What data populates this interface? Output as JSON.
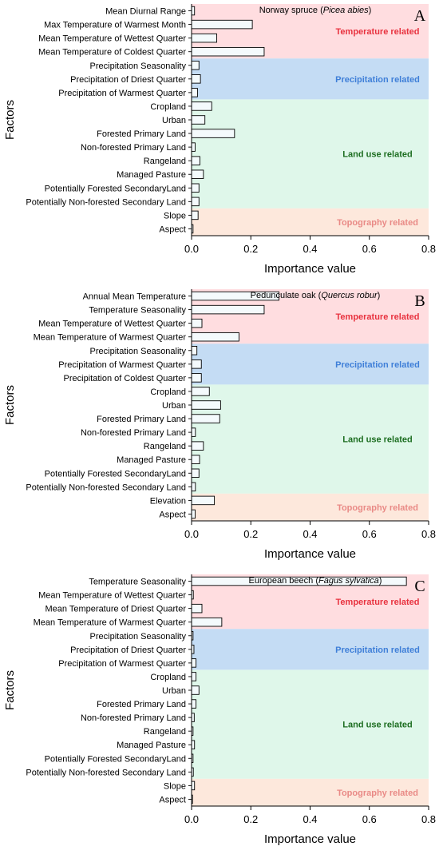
{
  "colors": {
    "temperature": "#ffdde0",
    "precipitation": "#c4dcf4",
    "landuse": "#dff7ea",
    "topography": "#fde8dc",
    "temperature_text": "#e8323f",
    "precipitation_text": "#3f7fd8",
    "landuse_text": "#1d6e21",
    "topography_text": "#e98a86"
  },
  "chart_data": [
    {
      "type": "bar",
      "orientation": "horizontal",
      "panel": "A",
      "title_plain": "Norway spruce (",
      "title_italic": "Picea abies",
      "title_close": ")",
      "xlabel": "Importance value",
      "ylabel": "Factors",
      "xlim": [
        0,
        0.8
      ],
      "xticks": [
        "0.0",
        "0.2",
        "0.4",
        "0.6",
        "0.8"
      ],
      "categories": [
        "Mean Diurnal Range",
        "Max Temperature of Warmest Month",
        "Mean Temperature of Wettest Quarter",
        "Mean Temperature of Coldest Quarter",
        "Precipitation Seasonality",
        "Precipitation of Driest Quarter",
        "Precipitation of Warmest Quarter",
        "Cropland",
        "Urban",
        "Forested Primary Land",
        "Non-forested Primary Land",
        "Rangeland",
        "Managed Pasture",
        "Potentially Forested SecondaryLand",
        "Potentially Non-forested Secondary Land",
        "Slope",
        "Aspect"
      ],
      "values": [
        0.01,
        0.205,
        0.085,
        0.245,
        0.025,
        0.03,
        0.02,
        0.068,
        0.045,
        0.145,
        0.012,
        0.028,
        0.04,
        0.025,
        0.025,
        0.022,
        0.005
      ],
      "groups": [
        {
          "label": "Temperature related",
          "key": "temperature",
          "count": 4
        },
        {
          "label": "Precipitation related",
          "key": "precipitation",
          "count": 3
        },
        {
          "label": "Land use related",
          "key": "landuse",
          "count": 8
        },
        {
          "label": "Topography related",
          "key": "topography",
          "count": 2
        }
      ]
    },
    {
      "type": "bar",
      "orientation": "horizontal",
      "panel": "B",
      "title_plain": "Pedunculate oak (",
      "title_italic": "Quercus robur",
      "title_close": ")",
      "xlabel": "Importance value",
      "ylabel": "Factors",
      "xlim": [
        0,
        0.8
      ],
      "xticks": [
        "0.0",
        "0.2",
        "0.4",
        "0.6",
        "0.8"
      ],
      "categories": [
        "Annual Mean Temperature",
        "Temperature Seasonality",
        "Mean Temperature of Wettest Quarter",
        "Mean Temperature of Warmest Quarter",
        "Precipitation Seasonality",
        "Precipitation of Warmest Quarter",
        "Precipitation of Coldest Quarter",
        "Cropland",
        "Urban",
        "Forested Primary Land",
        "Non-forested Primary Land",
        "Rangeland",
        "Managed Pasture",
        "Potentially Forested SecondaryLand",
        "Potentially Non-forested Secondary Land",
        "Elevation",
        "Aspect"
      ],
      "values": [
        0.295,
        0.245,
        0.035,
        0.16,
        0.018,
        0.033,
        0.033,
        0.06,
        0.098,
        0.095,
        0.013,
        0.04,
        0.027,
        0.025,
        0.013,
        0.077,
        0.012
      ],
      "groups": [
        {
          "label": "Temperature related",
          "key": "temperature",
          "count": 4
        },
        {
          "label": "Precipitation related",
          "key": "precipitation",
          "count": 3
        },
        {
          "label": "Land use related",
          "key": "landuse",
          "count": 8
        },
        {
          "label": "Topography related",
          "key": "topography",
          "count": 2
        }
      ]
    },
    {
      "type": "bar",
      "orientation": "horizontal",
      "panel": "C",
      "title_plain": "European beech (",
      "title_italic": "Fagus sylvatica",
      "title_close": ")",
      "xlabel": "Importance value",
      "ylabel": "Factors",
      "xlim": [
        0,
        0.8
      ],
      "xticks": [
        "0.0",
        "0.2",
        "0.4",
        "0.6",
        "0.8"
      ],
      "categories": [
        "Temperature Seasonality",
        "Mean Temperature of Wettest Quarter",
        "Mean Temperature of Driest Quarter",
        "Mean Temperature of Warmest Quarter",
        "Precipitation Seasonality",
        "Precipitation of Driest Quarter",
        "Precipitation of Warmest Quarter",
        "Cropland",
        "Urban",
        "Forested Primary Land",
        "Non-forested Primary Land",
        "Rangeland",
        "Managed Pasture",
        "Potentially Forested SecondaryLand",
        "Potentially Non-forested Secondary Land",
        "Slope",
        "Aspect"
      ],
      "values": [
        0.725,
        0.006,
        0.035,
        0.102,
        0.005,
        0.008,
        0.015,
        0.015,
        0.025,
        0.015,
        0.009,
        0.005,
        0.01,
        0.005,
        0.006,
        0.01,
        0.003
      ],
      "groups": [
        {
          "label": "Temperature related",
          "key": "temperature",
          "count": 4
        },
        {
          "label": "Precipitation related",
          "key": "precipitation",
          "count": 3
        },
        {
          "label": "Land use related",
          "key": "landuse",
          "count": 8
        },
        {
          "label": "Topography related",
          "key": "topography",
          "count": 2
        }
      ]
    }
  ]
}
